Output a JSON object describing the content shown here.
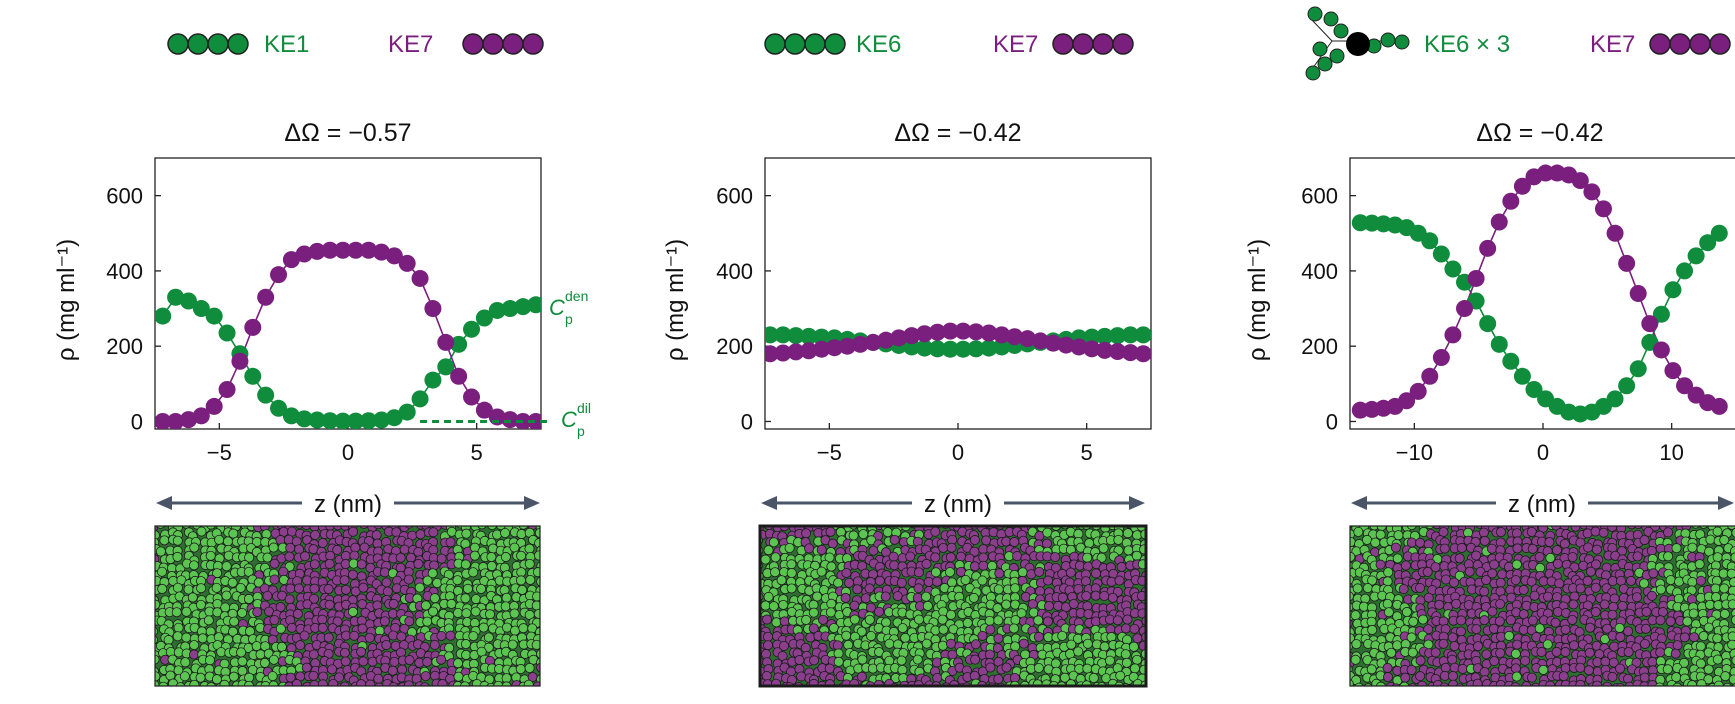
{
  "colors": {
    "green": "#0f8c3c",
    "purple": "#7a1f7e",
    "snap_green": "#5cc552",
    "snap_purple": "#8a3e8c",
    "axis": "#222222",
    "arrow": "#4a5668"
  },
  "panels": [
    {
      "legend": {
        "left_label": "KE1",
        "right_label": "KE7",
        "left_icon": "linear-chain-4-green",
        "right_icon": "linear-chain-4-purple"
      },
      "title": "ΔΩ = −0.57",
      "ylabel": "ρ (mg ml⁻¹)",
      "xlabel": "z (nm)",
      "annotations": {
        "den": "C",
        "den_sub": "p",
        "den_sup": "den",
        "dil": "C",
        "dil_sub": "p",
        "dil_sup": "dil"
      },
      "snapshot_icon": "simulation-snapshot-slab"
    },
    {
      "legend": {
        "left_label": "KE6",
        "right_label": "KE7",
        "left_icon": "linear-chain-4-green",
        "right_icon": "linear-chain-4-purple"
      },
      "title": "ΔΩ = −0.42",
      "ylabel": "ρ (mg ml⁻¹)",
      "xlabel": "z (nm)",
      "snapshot_icon": "simulation-snapshot-mixed"
    },
    {
      "legend": {
        "left_label": "KE6 × 3",
        "right_label": "KE7",
        "left_icon": "three-arm-star-green",
        "right_icon": "linear-chain-4-purple"
      },
      "title": "ΔΩ = −0.42",
      "ylabel": "ρ (mg ml⁻¹)",
      "xlabel": "z (nm)",
      "snapshot_icon": "simulation-snapshot-slab"
    }
  ],
  "chart_data": [
    {
      "type": "scatter",
      "title": "ΔΩ = −0.57",
      "xlabel": "z (nm)",
      "ylabel": "ρ (mg ml⁻¹)",
      "xlim": [
        -7.5,
        7.5
      ],
      "ylim": [
        -20,
        700
      ],
      "xticks": [
        -5,
        0,
        5
      ],
      "yticks": [
        0,
        200,
        400,
        600
      ],
      "grid": false,
      "series": [
        {
          "name": "KE1",
          "color": "#0f8c3c",
          "x": [
            -7.2,
            -6.7,
            -6.2,
            -5.7,
            -5.2,
            -4.7,
            -4.2,
            -3.7,
            -3.2,
            -2.7,
            -2.2,
            -1.7,
            -1.2,
            -0.7,
            -0.2,
            0.3,
            0.8,
            1.3,
            1.8,
            2.3,
            2.8,
            3.3,
            3.8,
            4.3,
            4.8,
            5.3,
            5.8,
            6.3,
            6.8,
            7.3
          ],
          "y": [
            280,
            330,
            320,
            300,
            280,
            235,
            180,
            120,
            70,
            35,
            15,
            7,
            4,
            2,
            1,
            1,
            2,
            4,
            10,
            25,
            60,
            110,
            145,
            205,
            245,
            275,
            295,
            300,
            305,
            310
          ]
        },
        {
          "name": "KE7",
          "color": "#7a1f7e",
          "x": [
            -7.2,
            -6.7,
            -6.2,
            -5.7,
            -5.2,
            -4.7,
            -4.2,
            -3.7,
            -3.2,
            -2.7,
            -2.2,
            -1.7,
            -1.2,
            -0.7,
            -0.2,
            0.3,
            0.8,
            1.3,
            1.8,
            2.3,
            2.8,
            3.3,
            3.8,
            4.3,
            4.8,
            5.3,
            5.8,
            6.3,
            6.8,
            7.3
          ],
          "y": [
            0,
            0,
            5,
            15,
            40,
            85,
            160,
            250,
            330,
            390,
            430,
            445,
            452,
            455,
            455,
            455,
            455,
            450,
            440,
            420,
            380,
            300,
            210,
            120,
            65,
            30,
            12,
            5,
            0,
            0
          ]
        }
      ],
      "reference_line": {
        "name": "C_p^dil",
        "y": 0,
        "x_from": 2.8,
        "x_to": 7.5,
        "style": "dashed"
      }
    },
    {
      "type": "scatter",
      "title": "ΔΩ = −0.42",
      "xlabel": "z (nm)",
      "ylabel": "ρ (mg ml⁻¹)",
      "xlim": [
        -7.5,
        7.5
      ],
      "ylim": [
        -20,
        700
      ],
      "xticks": [
        -5,
        0,
        5
      ],
      "yticks": [
        0,
        200,
        400,
        600
      ],
      "grid": false,
      "series": [
        {
          "name": "KE6",
          "color": "#0f8c3c",
          "x": [
            -7.3,
            -6.8,
            -6.3,
            -5.8,
            -5.3,
            -4.8,
            -4.3,
            -3.8,
            -3.3,
            -2.8,
            -2.3,
            -1.8,
            -1.3,
            -0.8,
            -0.3,
            0.2,
            0.7,
            1.2,
            1.7,
            2.2,
            2.7,
            3.2,
            3.7,
            4.2,
            4.7,
            5.2,
            5.7,
            6.2,
            6.7,
            7.2
          ],
          "y": [
            230,
            230,
            228,
            226,
            224,
            222,
            218,
            214,
            210,
            206,
            202,
            198,
            195,
            193,
            192,
            192,
            193,
            195,
            198,
            202,
            206,
            210,
            214,
            218,
            222,
            224,
            226,
            228,
            230,
            230
          ]
        },
        {
          "name": "KE7",
          "color": "#7a1f7e",
          "x": [
            -7.3,
            -6.8,
            -6.3,
            -5.8,
            -5.3,
            -4.8,
            -4.3,
            -3.8,
            -3.3,
            -2.8,
            -2.3,
            -1.8,
            -1.3,
            -0.8,
            -0.3,
            0.2,
            0.7,
            1.2,
            1.7,
            2.2,
            2.7,
            3.2,
            3.7,
            4.2,
            4.7,
            5.2,
            5.7,
            6.2,
            6.7,
            7.2
          ],
          "y": [
            180,
            182,
            185,
            188,
            192,
            196,
            200,
            205,
            210,
            216,
            222,
            228,
            233,
            237,
            240,
            240,
            238,
            235,
            230,
            225,
            220,
            214,
            208,
            203,
            198,
            193,
            189,
            186,
            183,
            180
          ]
        }
      ]
    },
    {
      "type": "scatter",
      "title": "ΔΩ = −0.42",
      "xlabel": "z (nm)",
      "ylabel": "ρ (mg ml⁻¹)",
      "xlim": [
        -15,
        15
      ],
      "ylim": [
        -20,
        700
      ],
      "xticks": [
        -10,
        0,
        10
      ],
      "yticks": [
        0,
        200,
        400,
        600
      ],
      "grid": false,
      "series": [
        {
          "name": "KE6 × 3",
          "color": "#0f8c3c",
          "x": [
            -14.2,
            -13.3,
            -12.4,
            -11.5,
            -10.6,
            -9.7,
            -8.8,
            -7.9,
            -7.0,
            -6.1,
            -5.2,
            -4.3,
            -3.4,
            -2.5,
            -1.6,
            -0.7,
            0.2,
            1.1,
            2.0,
            2.9,
            3.8,
            4.7,
            5.6,
            6.5,
            7.4,
            8.3,
            9.2,
            10.1,
            11.0,
            11.9,
            12.8,
            13.7
          ],
          "y": [
            528,
            527,
            525,
            522,
            515,
            500,
            480,
            445,
            405,
            370,
            320,
            260,
            205,
            160,
            120,
            85,
            60,
            40,
            25,
            20,
            25,
            40,
            60,
            95,
            140,
            210,
            285,
            350,
            400,
            440,
            475,
            500
          ]
        },
        {
          "name": "KE7",
          "color": "#7a1f7e",
          "x": [
            -14.2,
            -13.3,
            -12.4,
            -11.5,
            -10.6,
            -9.7,
            -8.8,
            -7.9,
            -7.0,
            -6.1,
            -5.2,
            -4.3,
            -3.4,
            -2.5,
            -1.6,
            -0.7,
            0.2,
            1.1,
            2.0,
            2.9,
            3.8,
            4.7,
            5.6,
            6.5,
            7.4,
            8.3,
            9.2,
            10.1,
            11.0,
            11.9,
            12.8,
            13.7
          ],
          "y": [
            30,
            32,
            35,
            40,
            55,
            80,
            120,
            170,
            230,
            300,
            380,
            460,
            530,
            585,
            625,
            650,
            660,
            660,
            655,
            640,
            610,
            565,
            500,
            420,
            340,
            260,
            190,
            135,
            95,
            70,
            50,
            40
          ]
        }
      ]
    }
  ]
}
